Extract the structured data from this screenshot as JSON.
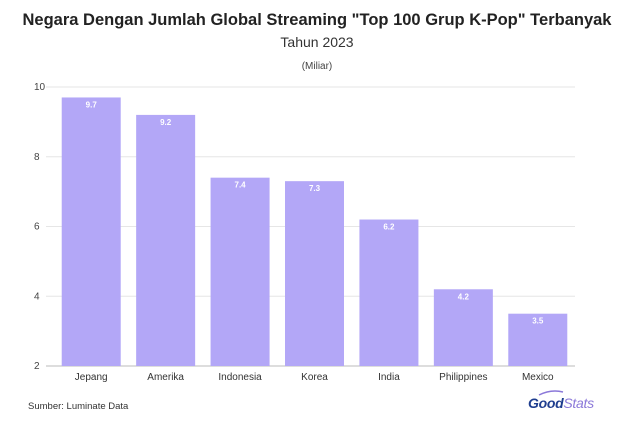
{
  "header": {
    "title": "Negara Dengan Jumlah Global Streaming \"Top 100 Grup K-Pop\" Terbanyak",
    "subtitle": "Tahun 2023",
    "unit": "(Miliar)"
  },
  "footer": {
    "source": "Sumber: Luminate Data",
    "logo_good": "Good",
    "logo_stats": "Stats"
  },
  "chart_data": {
    "type": "bar",
    "title": "Negara Dengan Jumlah Global Streaming \"Top 100 Grup K-Pop\" Terbanyak",
    "subtitle": "Tahun 2023",
    "ylabel": "(Miliar)",
    "xlabel": "",
    "categories": [
      "Jepang",
      "Amerika",
      "Indonesia",
      "Korea",
      "India",
      "Philippines",
      "Mexico"
    ],
    "values": [
      9.7,
      9.2,
      7.4,
      7.3,
      6.2,
      4.2,
      3.5
    ],
    "data_labels": [
      "9.7",
      "9.2",
      "7.4",
      "7.3",
      "6.2",
      "4.2",
      "3.5"
    ],
    "ylim": [
      2,
      10
    ],
    "yticks": [
      2,
      4,
      6,
      8,
      10
    ],
    "grid": true,
    "bar_color": "#b3a7f7",
    "label_color": "#ffffff"
  }
}
